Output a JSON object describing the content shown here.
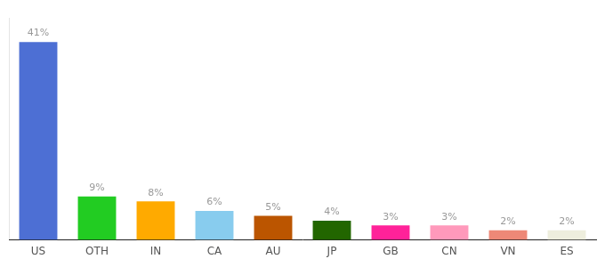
{
  "chart_data": {
    "type": "bar",
    "categories": [
      "US",
      "OTH",
      "IN",
      "CA",
      "AU",
      "JP",
      "GB",
      "CN",
      "VN",
      "ES"
    ],
    "values": [
      41,
      9,
      8,
      6,
      5,
      4,
      3,
      3,
      2,
      2
    ],
    "value_labels": [
      "41%",
      "9%",
      "8%",
      "6%",
      "5%",
      "4%",
      "3%",
      "3%",
      "2%",
      "2%"
    ],
    "data_labels": true,
    "colors": [
      "#4d6fd4",
      "#22cc22",
      "#ffaa00",
      "#88ccee",
      "#bb5500",
      "#226600",
      "#ff2299",
      "#ff99bb",
      "#ee8877",
      "#eeeedd"
    ],
    "ylim": [
      0,
      46
    ],
    "grid": false,
    "tick_labels": "x"
  }
}
